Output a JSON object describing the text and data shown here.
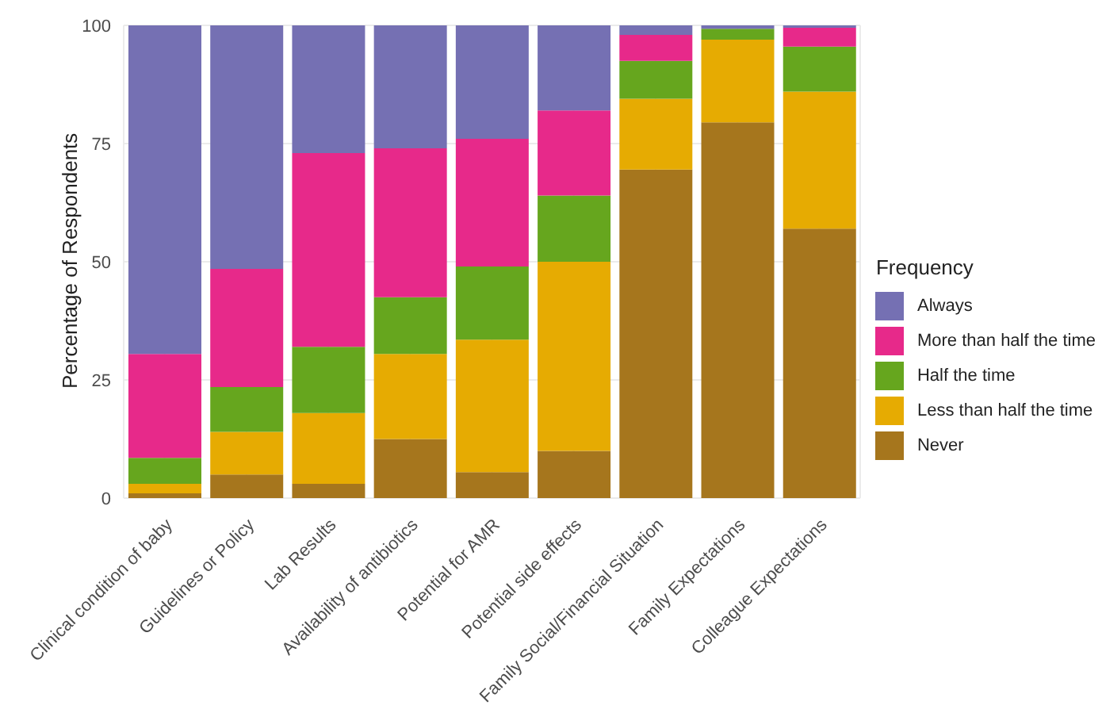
{
  "chart_data": {
    "type": "bar",
    "stacked": true,
    "ylabel": "Percentage of Respondents",
    "legend_title": "Frequency",
    "legend": "right",
    "grid": true,
    "categories": [
      "Clinical condition of baby",
      "Guidelines or Policy",
      "Lab Results",
      "Availability of antibiotics",
      "Potential for AMR",
      "Potential side effects",
      "Family Social/Financial Situation",
      "Family Expectations",
      "Colleague Expectations"
    ],
    "ylim": [
      0,
      100
    ],
    "yticks": [
      0,
      25,
      50,
      75,
      100
    ],
    "series": [
      {
        "name": "Never",
        "color": "#a6761d",
        "values": [
          1,
          5,
          3,
          12.5,
          5.5,
          10,
          69.5,
          79.5,
          57
        ]
      },
      {
        "name": "Less than half the time",
        "color": "#e6ab02",
        "values": [
          2,
          9,
          15,
          18,
          28,
          40,
          15,
          17.5,
          29
        ]
      },
      {
        "name": "Half the time",
        "color": "#66a61e",
        "values": [
          5.5,
          9.5,
          14,
          12,
          15.5,
          14,
          8,
          2.3,
          9.5
        ]
      },
      {
        "name": "More than half the time",
        "color": "#e7298a",
        "values": [
          22,
          25,
          41,
          31.5,
          27,
          18,
          5.5,
          0,
          4
        ]
      },
      {
        "name": "Always",
        "color": "#7570b3",
        "values": [
          69.5,
          51.5,
          27,
          26,
          24,
          18,
          2,
          0.7,
          0.5
        ]
      }
    ]
  }
}
